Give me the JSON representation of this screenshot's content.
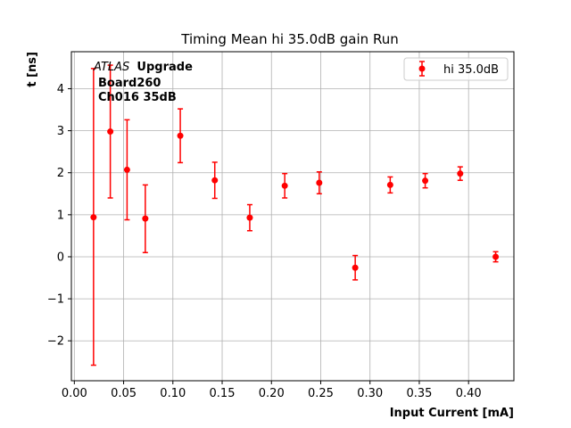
{
  "chart_data": {
    "type": "scatter",
    "title": "Timing Mean hi 35.0dB gain Run",
    "xlabel": "Input Current [mA]",
    "ylabel": "t [ns]",
    "xlim": [
      -0.003,
      0.446
    ],
    "ylim": [
      -2.95,
      4.88
    ],
    "xticks": [
      0.0,
      0.05,
      0.1,
      0.15,
      0.2,
      0.25,
      0.3,
      0.35,
      0.4
    ],
    "xtick_labels": [
      "0.00",
      "0.05",
      "0.10",
      "0.15",
      "0.20",
      "0.25",
      "0.30",
      "0.35",
      "0.40"
    ],
    "yticks": [
      -2,
      -1,
      0,
      1,
      2,
      3,
      4
    ],
    "ytick_labels": [
      "−2",
      "−1",
      "0",
      "1",
      "2",
      "3",
      "4"
    ],
    "grid": true,
    "legend_position": "top-right",
    "annotation": {
      "line1_italic": "ATLAS",
      "line1_bold": "Upgrade",
      "line2": "Board260",
      "line3": "Ch016 35dB"
    },
    "series": [
      {
        "name": "hi 35.0dB",
        "color": "#ff0000",
        "marker": "circle",
        "points": [
          {
            "x": 0.0195,
            "y": 0.94,
            "err_lo": 3.52,
            "err_hi": 3.54
          },
          {
            "x": 0.0365,
            "y": 2.98,
            "err_lo": 1.58,
            "err_hi": 1.58
          },
          {
            "x": 0.0535,
            "y": 2.07,
            "err_lo": 1.19,
            "err_hi": 1.19
          },
          {
            "x": 0.072,
            "y": 0.91,
            "err_lo": 0.81,
            "err_hi": 0.8
          },
          {
            "x": 0.1075,
            "y": 2.88,
            "err_lo": 0.64,
            "err_hi": 0.64
          },
          {
            "x": 0.1425,
            "y": 1.82,
            "err_lo": 0.43,
            "err_hi": 0.43
          },
          {
            "x": 0.178,
            "y": 0.93,
            "err_lo": 0.31,
            "err_hi": 0.31
          },
          {
            "x": 0.2135,
            "y": 1.69,
            "err_lo": 0.29,
            "err_hi": 0.29
          },
          {
            "x": 0.2485,
            "y": 1.76,
            "err_lo": 0.26,
            "err_hi": 0.26
          },
          {
            "x": 0.285,
            "y": -0.26,
            "err_lo": 0.29,
            "err_hi": 0.29
          },
          {
            "x": 0.3205,
            "y": 1.71,
            "err_lo": 0.19,
            "err_hi": 0.19
          },
          {
            "x": 0.356,
            "y": 1.81,
            "err_lo": 0.17,
            "err_hi": 0.17
          },
          {
            "x": 0.3915,
            "y": 1.98,
            "err_lo": 0.16,
            "err_hi": 0.16
          },
          {
            "x": 0.4275,
            "y": 0.0,
            "err_lo": 0.12,
            "err_hi": 0.12
          }
        ]
      }
    ]
  }
}
